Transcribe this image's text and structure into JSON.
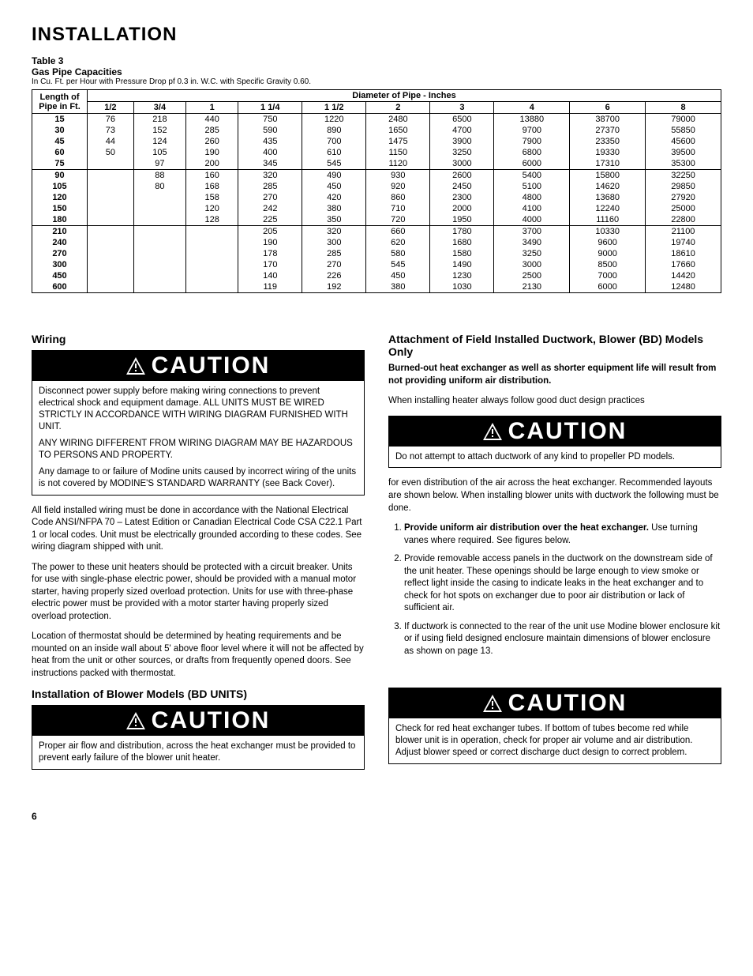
{
  "page_title": "INSTALLATION",
  "table": {
    "label": "Table 3",
    "title": "Gas Pipe Capacities",
    "note": "In Cu. Ft. per Hour with Pressure Drop pf 0.3 in. W.C. with Specific Gravity 0.60.",
    "row_header": "Length of Pipe in Ft.",
    "col_group": "Diameter of Pipe - Inches",
    "columns": [
      "1/2",
      "3/4",
      "1",
      "1 1/4",
      "1 1/2",
      "2",
      "3",
      "4",
      "6",
      "8"
    ],
    "rows": [
      {
        "len": "15",
        "v": [
          "76",
          "218",
          "440",
          "750",
          "1220",
          "2480",
          "6500",
          "13880",
          "38700",
          "79000"
        ]
      },
      {
        "len": "30",
        "v": [
          "73",
          "152",
          "285",
          "590",
          "890",
          "1650",
          "4700",
          "9700",
          "27370",
          "55850"
        ]
      },
      {
        "len": "45",
        "v": [
          "44",
          "124",
          "260",
          "435",
          "700",
          "1475",
          "3900",
          "7900",
          "23350",
          "45600"
        ]
      },
      {
        "len": "60",
        "v": [
          "50",
          "105",
          "190",
          "400",
          "610",
          "1150",
          "3250",
          "6800",
          "19330",
          "39500"
        ]
      },
      {
        "len": "75",
        "v": [
          "",
          "97",
          "200",
          "345",
          "545",
          "1120",
          "3000",
          "6000",
          "17310",
          "35300"
        ]
      },
      {
        "len": "90",
        "v": [
          "",
          "88",
          "160",
          "320",
          "490",
          "930",
          "2600",
          "5400",
          "15800",
          "32250"
        ],
        "sep": true
      },
      {
        "len": "105",
        "v": [
          "",
          "80",
          "168",
          "285",
          "450",
          "920",
          "2450",
          "5100",
          "14620",
          "29850"
        ]
      },
      {
        "len": "120",
        "v": [
          "",
          "",
          "158",
          "270",
          "420",
          "860",
          "2300",
          "4800",
          "13680",
          "27920"
        ]
      },
      {
        "len": "150",
        "v": [
          "",
          "",
          "120",
          "242",
          "380",
          "710",
          "2000",
          "4100",
          "12240",
          "25000"
        ]
      },
      {
        "len": "180",
        "v": [
          "",
          "",
          "128",
          "225",
          "350",
          "720",
          "1950",
          "4000",
          "11160",
          "22800"
        ]
      },
      {
        "len": "210",
        "v": [
          "",
          "",
          "",
          "205",
          "320",
          "660",
          "1780",
          "3700",
          "10330",
          "21100"
        ],
        "sep": true
      },
      {
        "len": "240",
        "v": [
          "",
          "",
          "",
          "190",
          "300",
          "620",
          "1680",
          "3490",
          "9600",
          "19740"
        ]
      },
      {
        "len": "270",
        "v": [
          "",
          "",
          "",
          "178",
          "285",
          "580",
          "1580",
          "3250",
          "9000",
          "18610"
        ]
      },
      {
        "len": "300",
        "v": [
          "",
          "",
          "",
          "170",
          "270",
          "545",
          "1490",
          "3000",
          "8500",
          "17660"
        ]
      },
      {
        "len": "450",
        "v": [
          "",
          "",
          "",
          "140",
          "226",
          "450",
          "1230",
          "2500",
          "7000",
          "14420"
        ]
      },
      {
        "len": "600",
        "v": [
          "",
          "",
          "",
          "119",
          "192",
          "380",
          "1030",
          "2130",
          "6000",
          "12480"
        ]
      }
    ]
  },
  "left": {
    "wiring_heading": "Wiring",
    "caution_label": "CAUTION",
    "caution1": {
      "p1": "Disconnect power supply before making wiring connections to prevent electrical shock and equipment damage. ALL UNITS MUST BE WIRED STRICTLY IN ACCORDANCE WITH WIRING DIAGRAM FURNISHED WITH UNIT.",
      "p2": "ANY WIRING DIFFERENT FROM WIRING DIAGRAM MAY BE HAZARDOUS TO PERSONS AND PROPERTY.",
      "p3": "Any damage to or failure of Modine units caused by incorrect wiring of the units is not covered by MODINE'S STANDARD WARRANTY (see Back Cover)."
    },
    "para1": "All field installed wiring must be done in accordance with the National Electrical Code ANSI/NFPA 70 – Latest Edition or Canadian Electrical Code CSA C22.1 Part 1 or local codes. Unit must be electrically grounded according to these codes. See wiring diagram shipped with unit.",
    "para2": "The power to these unit heaters should be protected with a circuit breaker. Units for use with single-phase electric power, should be provided with a manual motor starter, having properly sized overload protection. Units for use with three-phase electric power must be provided with a motor starter having properly sized overload protection.",
    "para3": "Location of thermostat should be determined by heating requirements and be mounted on an inside wall about 5' above floor level where it will not be affected by heat from the unit or other sources, or drafts from frequently opened doors. See instructions packed with thermostat.",
    "blower_heading": "Installation of Blower Models (BD UNITS)",
    "caution2": "Proper air flow and distribution, across the heat exchanger must be provided to prevent early failure of the blower unit heater."
  },
  "right": {
    "duct_heading": "Attachment of Field Installed Ductwork, Blower (BD) Models Only",
    "lead": "Burned-out heat exchanger as well as shorter equipment life will result from not providing uniform air distribution.",
    "para1": "When installing heater always follow good duct design practices",
    "caution_label": "CAUTION",
    "caution1": "Do not attempt to attach ductwork of any kind to propeller PD models.",
    "para2": "for even distribution of the air across the heat exchanger. Recommended layouts are shown below. When installing blower units with ductwork the following must be done.",
    "steps": [
      {
        "bold": "Provide uniform air distribution over the heat    exchanger.",
        "rest": " Use turning vanes where required. See figures below."
      },
      {
        "bold": "",
        "rest": "Provide removable access panels in the ductwork on the downstream side of the unit heater. These openings should be large enough to view smoke or reflect light inside the casing to indicate leaks in the heat exchanger and to check for hot spots on exchanger due to poor air distribution or lack of sufficient air."
      },
      {
        "bold": "",
        "rest": "If ductwork is connected to the rear of the unit use Modine blower enclosure kit or if using field designed enclosure maintain dimensions of blower enclosure as shown on page 13."
      }
    ],
    "caution2": "Check for red heat exchanger tubes. If bottom of tubes become red while blower unit is in operation, check for proper air volume and air distribution. Adjust blower speed or correct discharge duct design to correct problem."
  },
  "page_number": "6"
}
